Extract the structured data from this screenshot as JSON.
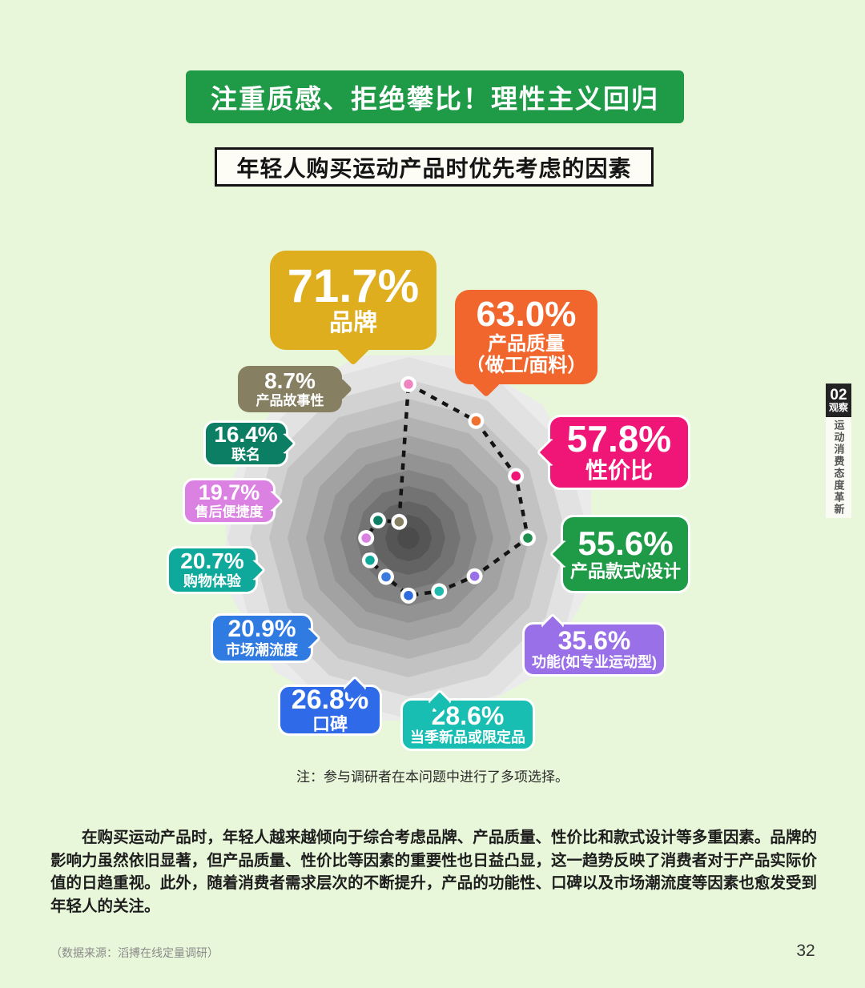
{
  "page": {
    "bg_color": "#e8f7da",
    "page_number": "32",
    "source_note": "（数据来源：滔搏在线定量调研）"
  },
  "header": {
    "banner": "注重质感、拒绝攀比！理性主义回归",
    "banner_color": "#1f9b48",
    "subtitle": "年轻人购买运动产品时优先考虑的因素"
  },
  "side_tab": {
    "chapter_number": "02",
    "chapter_label": "观察",
    "vertical_title": "运动消费态度革新"
  },
  "chart_note": "注：参与调研者在本问题中进行了多项选择。",
  "body_paragraph": "在购买运动产品时，年轻人越来越倾向于综合考虑品牌、产品质量、性价比和款式设计等多重因素。品牌的影响力虽然依旧显著，但产品质量、性价比等因素的重要性也日益凸显，这一趋势反映了消费者对于产品实际价值的日趋重视。此外，随着消费者需求层次的不断提升，产品的功能性、口碑以及市场潮流度等因素也愈发受到年轻人的关注。",
  "callouts": [
    {
      "value": "71.7%",
      "label": "品牌"
    },
    {
      "value": "63.0%",
      "label": "产品质量",
      "label2": "（做工/面料）"
    },
    {
      "value": "57.8%",
      "label": "性价比"
    },
    {
      "value": "55.6%",
      "label": "产品款式/设计"
    },
    {
      "value": "35.6%",
      "label": "功能(如专业运动型)"
    },
    {
      "value": "28.6%",
      "label": "当季新品或限定品"
    },
    {
      "value": "26.8%",
      "label": "口碑"
    },
    {
      "value": "20.9%",
      "label": "市场潮流度"
    },
    {
      "value": "20.7%",
      "label": "购物体验"
    },
    {
      "value": "19.7%",
      "label": "售后便捷度"
    },
    {
      "value": "16.4%",
      "label": "联名"
    },
    {
      "value": "8.7%",
      "label": "产品故事性"
    }
  ],
  "chart_data": {
    "type": "radar",
    "title": "年轻人购买运动产品时优先考虑的因素",
    "unit": "%",
    "note": "多项选择",
    "grid": "concentric 12-gon grayscale funnel, no axis labels",
    "legend_position": "callout bubbles around chart",
    "categories": [
      "品牌",
      "产品质量（做工/面料）",
      "性价比",
      "产品款式/设计",
      "功能(如专业运动型)",
      "当季新品或限定品",
      "口碑",
      "市场潮流度",
      "购物体验",
      "售后便捷度",
      "联名",
      "产品故事性"
    ],
    "values": [
      71.7,
      63.0,
      57.8,
      55.6,
      35.6,
      28.6,
      26.8,
      20.9,
      20.7,
      19.7,
      16.4,
      8.7
    ],
    "value_range": [
      0,
      80
    ],
    "box_colors": [
      "#dfae1e",
      "#f1662d",
      "#ef1677",
      "#1f9b47",
      "#9a70e8",
      "#19beb2",
      "#2f6be8",
      "#2f7be2",
      "#0fa99b",
      "#da81e2",
      "#0b7e63",
      "#877f62"
    ],
    "point_colors": [
      "#ee85c1",
      "#f07030",
      "#ef1677",
      "#1f8f50",
      "#9a70e8",
      "#1fb9ae",
      "#2f6be0",
      "#3a7be0",
      "#0fa99b",
      "#da81e2",
      "#0b7e63",
      "#877f62"
    ],
    "line_style": "black dashed closed polygon through points"
  }
}
